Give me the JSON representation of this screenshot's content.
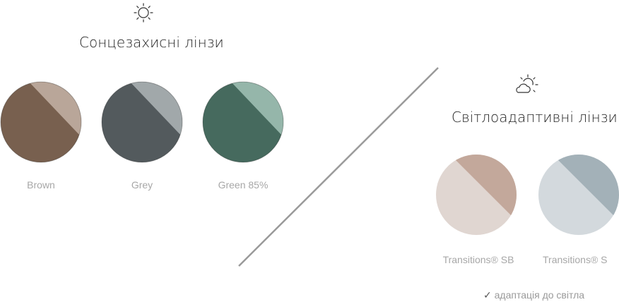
{
  "sun_section": {
    "icon": "sun-icon",
    "title": "Сонцезахисні лінзи",
    "lenses": [
      {
        "label": "Brown",
        "color": "#78604f",
        "highlight": "#c9b8ab"
      },
      {
        "label": "Grey",
        "color": "#535a5d",
        "highlight": "#b5bcbe"
      },
      {
        "label": "Green 85%",
        "color": "#466a5e",
        "highlight": "#a9c9bd"
      }
    ]
  },
  "adaptive_section": {
    "icon": "sun-cloud-icon",
    "title": "Світлоадаптивні лінзи",
    "lenses": [
      {
        "label": "Transitions® SB",
        "light_color": "#e0d6d1",
        "dark_color": "#c3a89b"
      },
      {
        "label": "Transitions® S",
        "light_color": "#d3d9dd",
        "dark_color": "#a3b1b8"
      }
    ],
    "note_icon": "check-icon",
    "note": "адаптація до світла"
  },
  "colors": {
    "divider": "#9a9a9a",
    "title_text": "#1f1f1f",
    "label_text": "#a7a7a7"
  }
}
